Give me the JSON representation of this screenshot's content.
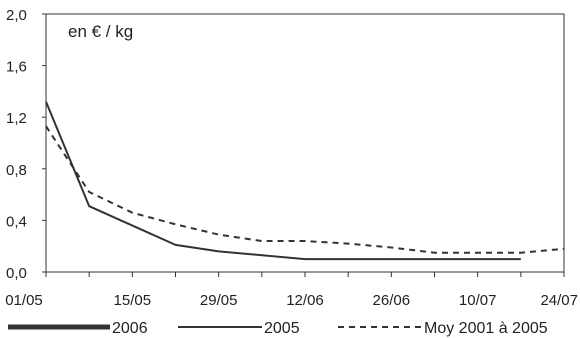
{
  "chart_data": {
    "type": "line",
    "unit_label": "en € / kg",
    "x": [
      "01/05",
      "08/05",
      "22/05",
      "29/05",
      "12/06",
      "10/07",
      "17/07",
      "24/07"
    ],
    "x_ticks": [
      "01/05",
      "15/05",
      "29/05",
      "12/06",
      "26/06",
      "10/07",
      "24/07"
    ],
    "y_ticks": [
      "0,0",
      "0,4",
      "0,8",
      "1,2",
      "1,6",
      "2,0"
    ],
    "ylim": [
      0,
      2.0
    ],
    "grid": false,
    "legend_position": "bottom",
    "series": [
      {
        "name": "2006",
        "style": "thick",
        "color": "#333333",
        "points": []
      },
      {
        "name": "2005",
        "style": "solid",
        "color": "#333333",
        "points": [
          [
            "01/05",
            1.32
          ],
          [
            "08/05",
            0.51
          ],
          [
            "22/05",
            0.21
          ],
          [
            "29/05",
            0.16
          ],
          [
            "12/06",
            0.1
          ],
          [
            "26/06",
            0.1
          ],
          [
            "10/07",
            0.1
          ],
          [
            "17/07",
            0.1
          ]
        ]
      },
      {
        "name": "Moy 2001 à 2005",
        "style": "dashed",
        "color": "#333333",
        "points": [
          [
            "01/05",
            1.13
          ],
          [
            "08/05",
            0.62
          ],
          [
            "15/05",
            0.46
          ],
          [
            "22/05",
            0.37
          ],
          [
            "29/05",
            0.29
          ],
          [
            "05/06",
            0.24
          ],
          [
            "12/06",
            0.24
          ],
          [
            "19/06",
            0.22
          ],
          [
            "26/06",
            0.19
          ],
          [
            "03/07",
            0.15
          ],
          [
            "10/07",
            0.15
          ],
          [
            "17/07",
            0.15
          ],
          [
            "24/07",
            0.18
          ]
        ]
      }
    ]
  }
}
